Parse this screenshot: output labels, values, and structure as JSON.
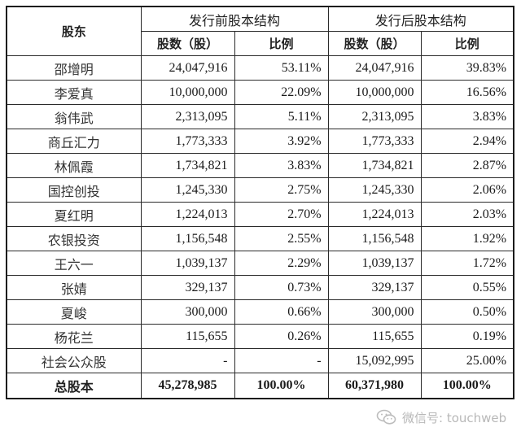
{
  "table": {
    "header": {
      "shareholder": "股东",
      "pre_issue_group": "发行前股本结构",
      "post_issue_group": "发行后股本结构",
      "shares_col": "股数（股）",
      "ratio_col": "比例"
    },
    "rows": [
      {
        "name": "邵增明",
        "pre_shares": "24,047,916",
        "pre_ratio": "53.11%",
        "post_shares": "24,047,916",
        "post_ratio": "39.83%"
      },
      {
        "name": "李爱真",
        "pre_shares": "10,000,000",
        "pre_ratio": "22.09%",
        "post_shares": "10,000,000",
        "post_ratio": "16.56%"
      },
      {
        "name": "翁伟武",
        "pre_shares": "2,313,095",
        "pre_ratio": "5.11%",
        "post_shares": "2,313,095",
        "post_ratio": "3.83%"
      },
      {
        "name": "商丘汇力",
        "pre_shares": "1,773,333",
        "pre_ratio": "3.92%",
        "post_shares": "1,773,333",
        "post_ratio": "2.94%"
      },
      {
        "name": "林佩霞",
        "pre_shares": "1,734,821",
        "pre_ratio": "3.83%",
        "post_shares": "1,734,821",
        "post_ratio": "2.87%"
      },
      {
        "name": "国控创投",
        "pre_shares": "1,245,330",
        "pre_ratio": "2.75%",
        "post_shares": "1,245,330",
        "post_ratio": "2.06%"
      },
      {
        "name": "夏红明",
        "pre_shares": "1,224,013",
        "pre_ratio": "2.70%",
        "post_shares": "1,224,013",
        "post_ratio": "2.03%"
      },
      {
        "name": "农银投资",
        "pre_shares": "1,156,548",
        "pre_ratio": "2.55%",
        "post_shares": "1,156,548",
        "post_ratio": "1.92%"
      },
      {
        "name": "王六一",
        "pre_shares": "1,039,137",
        "pre_ratio": "2.29%",
        "post_shares": "1,039,137",
        "post_ratio": "1.72%"
      },
      {
        "name": "张婧",
        "pre_shares": "329,137",
        "pre_ratio": "0.73%",
        "post_shares": "329,137",
        "post_ratio": "0.55%"
      },
      {
        "name": "夏峻",
        "pre_shares": "300,000",
        "pre_ratio": "0.66%",
        "post_shares": "300,000",
        "post_ratio": "0.50%"
      },
      {
        "name": "杨花兰",
        "pre_shares": "115,655",
        "pre_ratio": "0.26%",
        "post_shares": "115,655",
        "post_ratio": "0.19%"
      },
      {
        "name": "社会公众股",
        "pre_shares": "-",
        "pre_ratio": "-",
        "post_shares": "15,092,995",
        "post_ratio": "25.00%"
      }
    ],
    "total": {
      "name": "总股本",
      "pre_shares": "45,278,985",
      "pre_ratio": "100.00%",
      "post_shares": "60,371,980",
      "post_ratio": "100.00%"
    }
  },
  "watermark": {
    "icon": "wechat-icon",
    "text": "微信号: touchweb"
  }
}
